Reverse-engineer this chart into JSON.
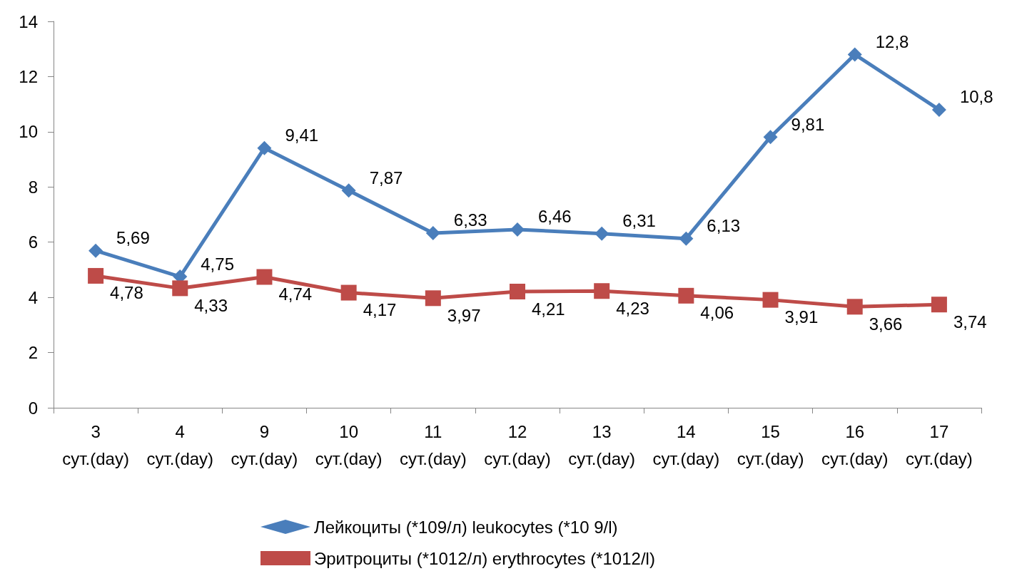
{
  "chart_data": {
    "type": "line",
    "categories": [
      "3\nсут.(day)",
      "4\nсут.(day)",
      "9\nсут.(day)",
      "10\nсут.(day)",
      "11\nсут.(day)",
      "12\nсут.(day)",
      "13\nсут.(day)",
      "14\nсут.(day)",
      "15\nсут.(day)",
      "16\nсут.(day)",
      "17\nсут.(day)"
    ],
    "series": [
      {
        "name": "Лейкоциты (*109/л) leukocytes (*10 9/l)",
        "color": "#4a7ebb",
        "marker": "diamond",
        "values": [
          5.69,
          4.75,
          9.41,
          7.87,
          6.33,
          6.46,
          6.31,
          6.13,
          9.81,
          12.8,
          10.8
        ],
        "value_labels": [
          "5,69",
          "4,75",
          "9,41",
          "7,87",
          "6,33",
          "6,46",
          "6,31",
          "6,13",
          "9,81",
          "12,8",
          "10,8"
        ]
      },
      {
        "name": "Эритроциты (*1012/л) erythrocytes (*1012/l)",
        "color": "#be4b48",
        "marker": "square",
        "values": [
          4.78,
          4.33,
          4.74,
          4.17,
          3.97,
          4.21,
          4.23,
          4.06,
          3.91,
          3.66,
          3.74
        ],
        "value_labels": [
          "4,78",
          "4,33",
          "4,74",
          "4,17",
          "3,97",
          "4,21",
          "4,23",
          "4,06",
          "3,91",
          "3,66",
          "3,74"
        ]
      }
    ],
    "ylim": [
      0,
      14
    ],
    "yticks": [
      0,
      2,
      4,
      6,
      8,
      10,
      12,
      14
    ],
    "grid": false,
    "legend": "bottom",
    "line_style": "solid"
  }
}
